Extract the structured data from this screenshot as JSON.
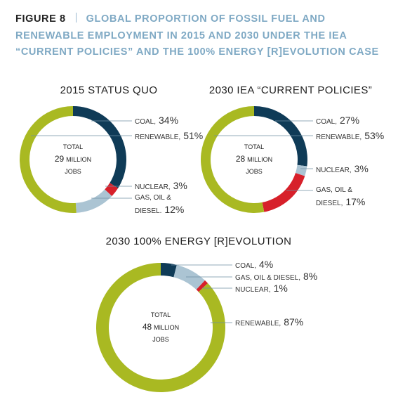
{
  "header": {
    "figure": "FIGURE 8",
    "title": "GLOBAL PROPORTION OF FOSSIL FUEL AND RENEWABLE EMPLOYMENT IN 2015 AND 2030 UNDER THE IEA “CURRENT POLICIES” AND THE 100% ENERGY [R]EVOLUTION CASE"
  },
  "chart_data": [
    {
      "type": "donut",
      "title": "2015 STATUS QUO",
      "center": {
        "top": "TOTAL",
        "total": 29,
        "unit": "MILLION",
        "bottom": "JOBS"
      },
      "categories": [
        "COAL,",
        "NUCLEAR,",
        "GAS, OIL & DIESEL.",
        "RENEWABLE,"
      ],
      "values": [
        34,
        3,
        12,
        51
      ],
      "value_labels": [
        "34%",
        "3%",
        "12%",
        "51%"
      ],
      "colors": [
        "#0f3b57",
        "#d7202a",
        "#abc4d3",
        "#a9b922"
      ]
    },
    {
      "type": "donut",
      "title": "2030 IEA “CURRENT POLICIES”",
      "center": {
        "top": "TOTAL",
        "total": 28,
        "unit": "MILLION",
        "bottom": "JOBS"
      },
      "categories": [
        "COAL,",
        "NUCLEAR,",
        "GAS, OIL & DIESEL,",
        "RENEWABLE,"
      ],
      "values": [
        27,
        3,
        17,
        53
      ],
      "value_labels": [
        "27%",
        "3%",
        "17%",
        "53%"
      ],
      "colors": [
        "#0f3b57",
        "#abc4d3",
        "#d7202a",
        "#a9b922"
      ]
    },
    {
      "type": "donut",
      "title": "2030 100% ENERGY [R]EVOLUTION",
      "center": {
        "top": "TOTAL",
        "total": 48,
        "unit": "MILLION",
        "bottom": "JOBS"
      },
      "categories": [
        "COAL,",
        "GAS, OIL & DIESEL,",
        "NUCLEAR,",
        "RENEWABLE,"
      ],
      "values": [
        4,
        8,
        1,
        87
      ],
      "value_labels": [
        "4%",
        "8%",
        "1%",
        "87%"
      ],
      "colors": [
        "#0f3b57",
        "#abc4d3",
        "#d7202a",
        "#a9b922"
      ]
    }
  ]
}
